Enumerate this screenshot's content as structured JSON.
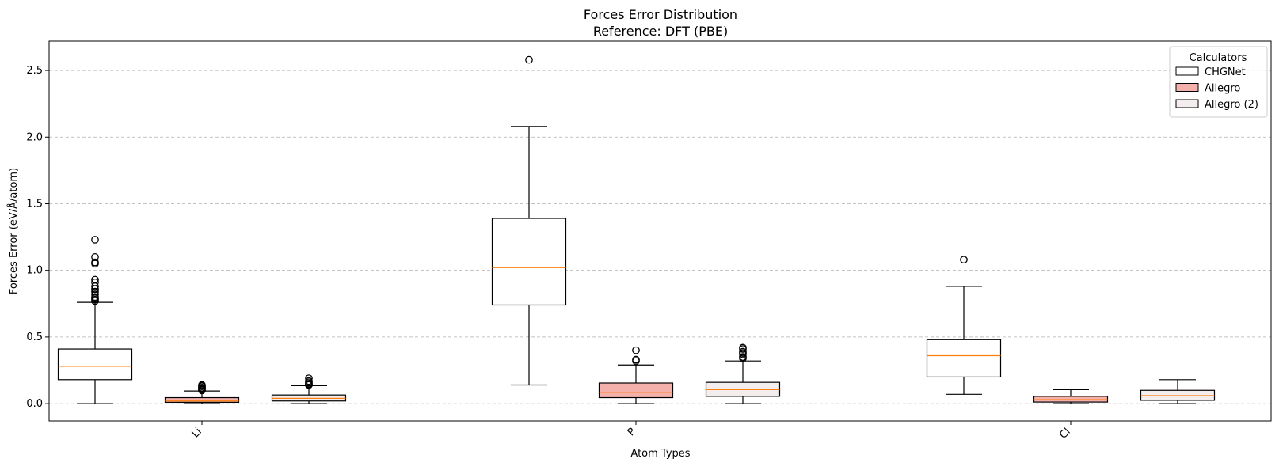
{
  "chart_data": {
    "type": "box",
    "title": "Forces Error Distribution",
    "subtitle": "Reference: DFT (PBE)",
    "xlabel": "Atom Types",
    "ylabel": "Forces Error (eV/Å/atom)",
    "categories": [
      "Li",
      "P",
      "Cl"
    ],
    "ylim": [
      -0.13,
      2.72
    ],
    "yticks": [
      0.0,
      0.5,
      1.0,
      1.5,
      2.0,
      2.5
    ],
    "ytick_labels": [
      "0.0",
      "0.5",
      "1.0",
      "1.5",
      "2.0",
      "2.5"
    ],
    "grid": "y-dashed",
    "legend": {
      "title": "Calculators",
      "placement": "top-right",
      "entries": [
        "CHGNet",
        "Allegro",
        "Allegro (2)"
      ]
    },
    "series": [
      {
        "name": "CHGNet",
        "color": "#ffffff",
        "boxes": [
          {
            "whislo": 0.0,
            "q1": 0.18,
            "med": 0.28,
            "q3": 0.41,
            "whishi": 0.76,
            "fliers": [
              0.77,
              0.78,
              0.79,
              0.8,
              0.82,
              0.84,
              0.86,
              0.88,
              0.91,
              0.93,
              1.05,
              1.06,
              1.1,
              1.23
            ]
          },
          {
            "whislo": 0.14,
            "q1": 0.74,
            "med": 1.02,
            "q3": 1.39,
            "whishi": 2.08,
            "fliers": [
              2.58
            ]
          },
          {
            "whislo": 0.07,
            "q1": 0.2,
            "med": 0.36,
            "q3": 0.48,
            "whishi": 0.88,
            "fliers": [
              1.08
            ]
          }
        ]
      },
      {
        "name": "Allegro",
        "color": "#f4b0aa",
        "boxes": [
          {
            "whislo": 0.0,
            "q1": 0.01,
            "med": 0.02,
            "q3": 0.045,
            "whishi": 0.095,
            "fliers": [
              0.1,
              0.105,
              0.11,
              0.115,
              0.12,
              0.13,
              0.135,
              0.14
            ]
          },
          {
            "whislo": 0.0,
            "q1": 0.045,
            "med": 0.085,
            "q3": 0.155,
            "whishi": 0.29,
            "fliers": [
              0.32,
              0.33,
              0.4
            ]
          },
          {
            "whislo": 0.0,
            "q1": 0.012,
            "med": 0.03,
            "q3": 0.055,
            "whishi": 0.105,
            "fliers": []
          }
        ]
      },
      {
        "name": "Allegro (2)",
        "color": "#f3eded",
        "boxes": [
          {
            "whislo": 0.0,
            "q1": 0.02,
            "med": 0.04,
            "q3": 0.065,
            "whishi": 0.135,
            "fliers": [
              0.14,
              0.145,
              0.15,
              0.16,
              0.17,
              0.19
            ]
          },
          {
            "whislo": 0.0,
            "q1": 0.055,
            "med": 0.105,
            "q3": 0.16,
            "whishi": 0.32,
            "fliers": [
              0.34,
              0.35,
              0.37,
              0.38,
              0.39,
              0.41,
              0.42
            ]
          },
          {
            "whislo": 0.0,
            "q1": 0.025,
            "med": 0.06,
            "q3": 0.1,
            "whishi": 0.18,
            "fliers": []
          }
        ]
      }
    ]
  }
}
